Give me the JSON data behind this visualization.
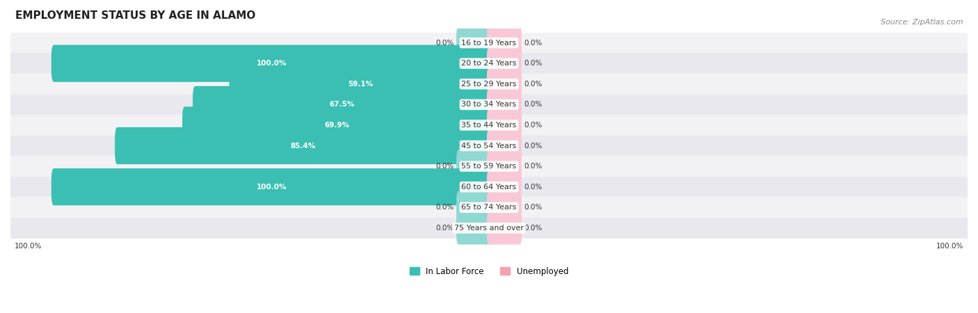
{
  "title": "EMPLOYMENT STATUS BY AGE IN ALAMO",
  "source": "Source: ZipAtlas.com",
  "categories": [
    "16 to 19 Years",
    "20 to 24 Years",
    "25 to 29 Years",
    "30 to 34 Years",
    "35 to 44 Years",
    "45 to 54 Years",
    "55 to 59 Years",
    "60 to 64 Years",
    "65 to 74 Years",
    "75 Years and over"
  ],
  "labor_force": [
    0.0,
    100.0,
    59.1,
    67.5,
    69.9,
    85.4,
    0.0,
    100.0,
    0.0,
    0.0
  ],
  "unemployed": [
    0.0,
    0.0,
    0.0,
    0.0,
    0.0,
    0.0,
    0.0,
    0.0,
    0.0,
    0.0
  ],
  "labor_force_color": "#3bbfb2",
  "unemployed_color": "#f4a0b5",
  "labor_force_stub_color": "#90d8d2",
  "unemployed_stub_color": "#f9c8d6",
  "row_bg_even": "#f2f2f5",
  "row_bg_odd": "#e8e8ee",
  "label_color": "#333333",
  "title_color": "#222222",
  "source_color": "#888888",
  "max_value": 100.0,
  "stub_size": 7.0,
  "figsize": [
    14.06,
    4.5
  ],
  "dpi": 100
}
